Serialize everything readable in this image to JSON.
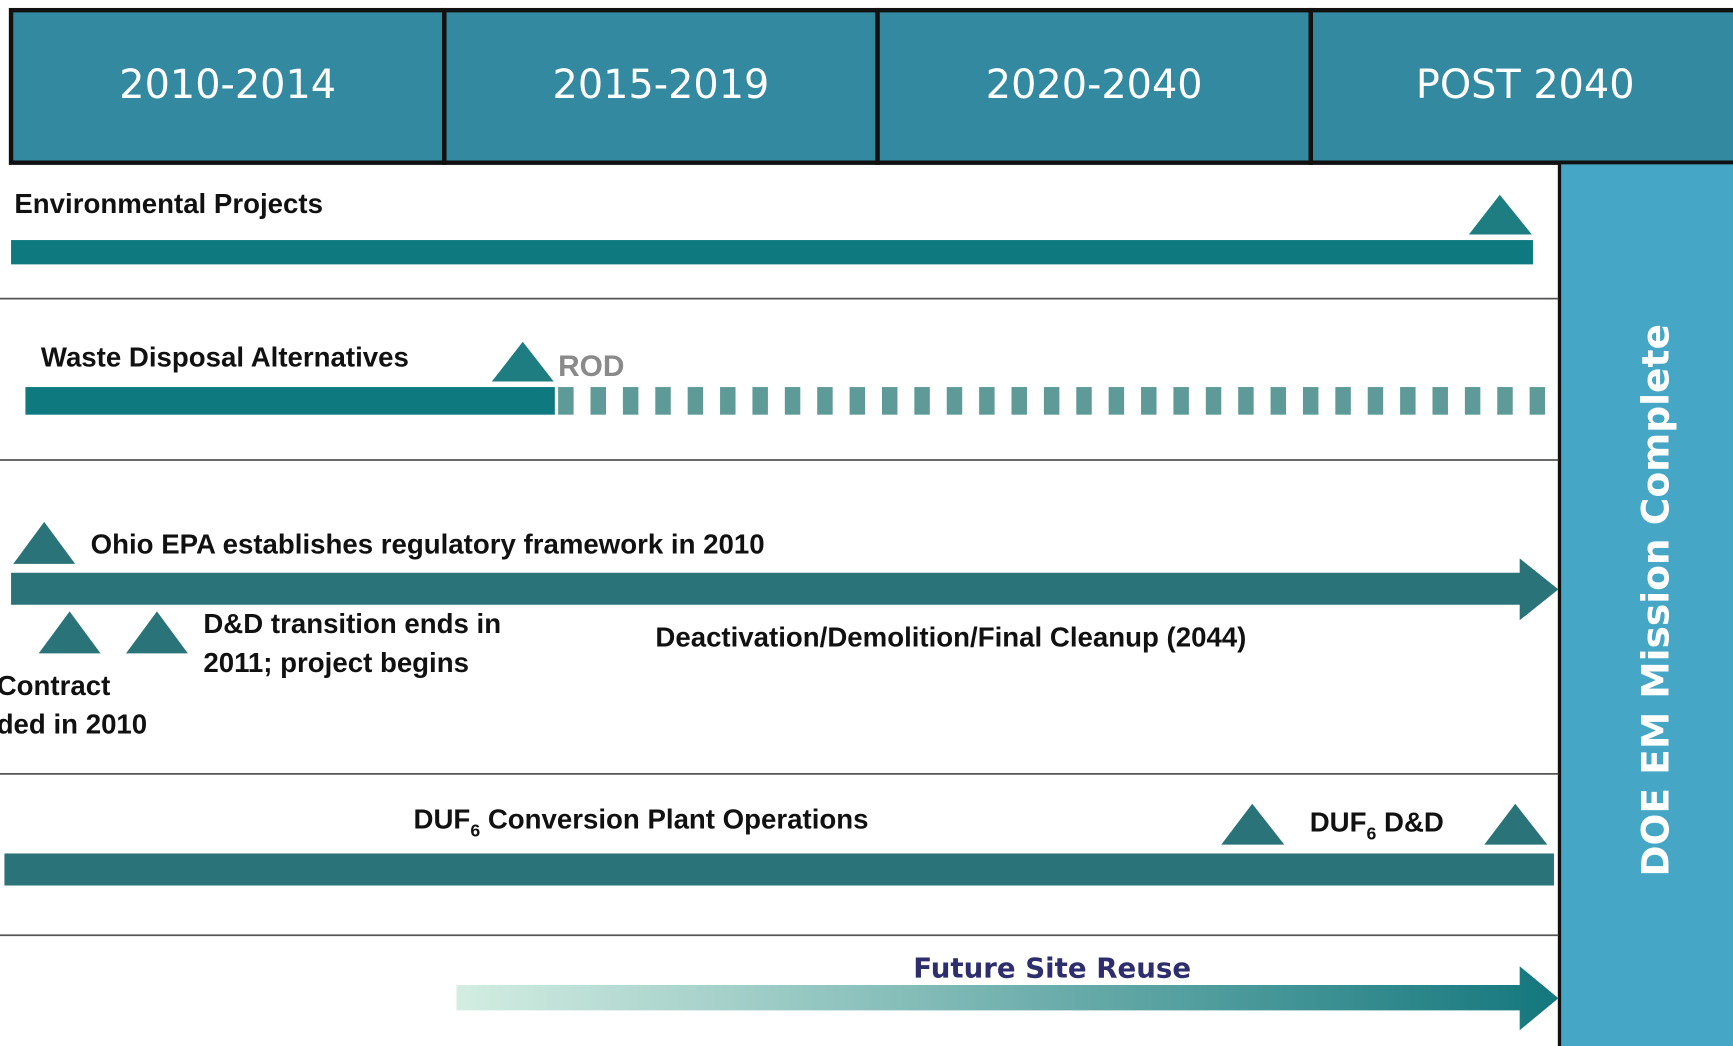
{
  "header": {
    "periods": [
      "2010-2014",
      "2015-2019",
      "2020-2040",
      "POST 2040"
    ]
  },
  "side_label": "DOE EM Mission Complete",
  "rows": [
    {
      "label": "Environmental Projects"
    },
    {
      "label": "Waste Disposal Alternatives",
      "milestone": "ROD"
    },
    {
      "milestone": "Ohio EPA establishes regulatory framework in 2010",
      "notes": [
        "D&D transition ends in",
        "2011; project begins"
      ],
      "label": "Deactivation/Demolition/Final Cleanup (2044)",
      "contract_note": [
        "Contract",
        "ded in 2010"
      ]
    },
    {
      "label": {
        "text": "DUF",
        "sub": "6",
        "rest": " Conversion Plant Operations"
      },
      "milestone": {
        "text": "DUF",
        "sub": "6",
        "rest": " D&D"
      }
    },
    {
      "label": "Future Site Reuse"
    }
  ]
}
